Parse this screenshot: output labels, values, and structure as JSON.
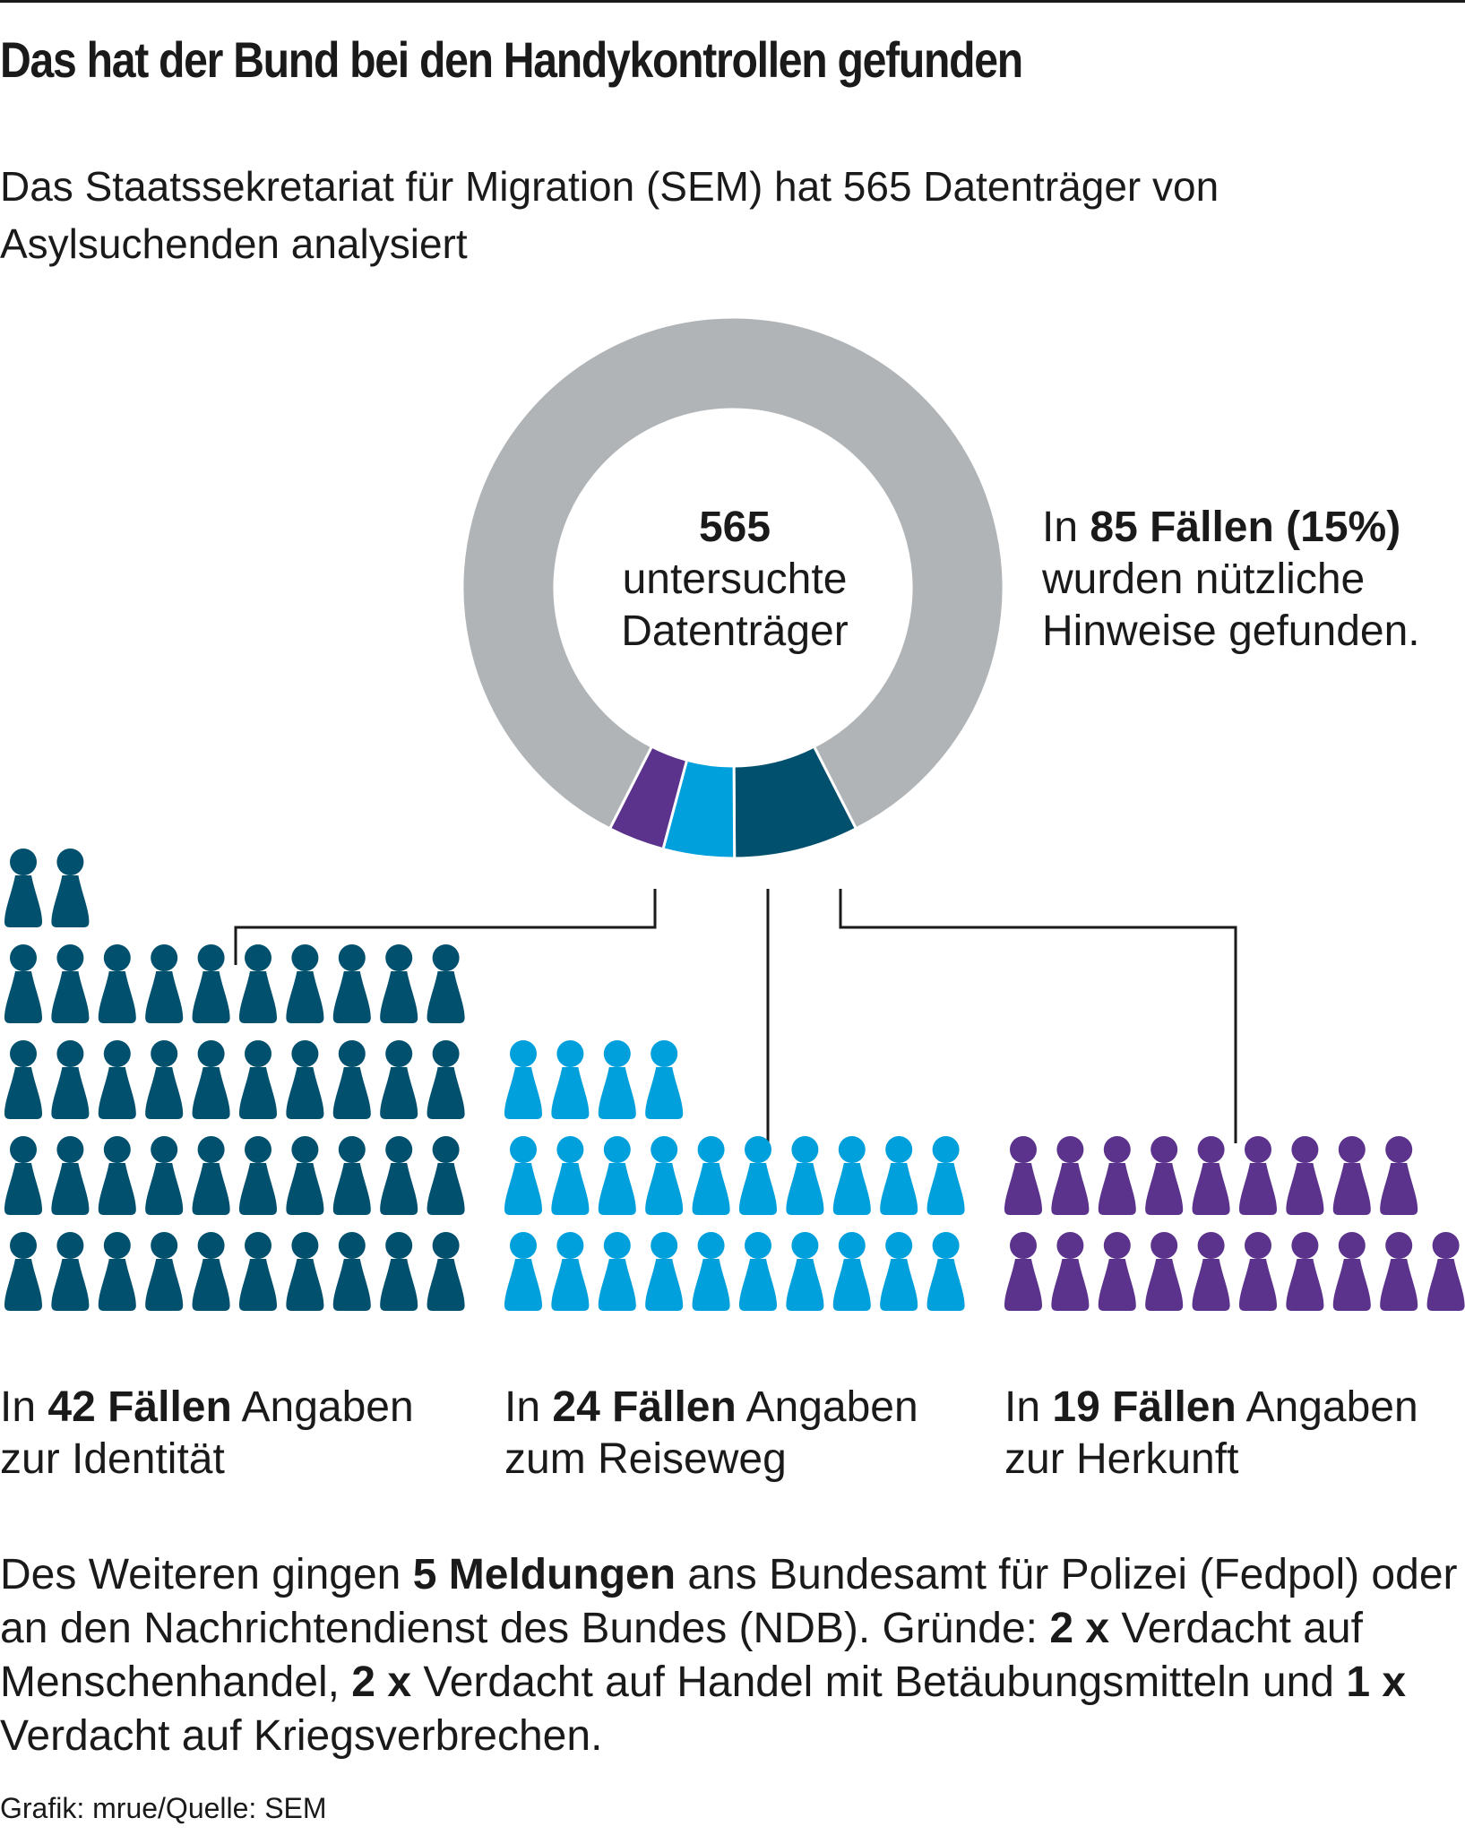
{
  "header": {
    "title": "Das hat der Bund bei den Handykontrollen gefunden",
    "subtitle": "Das Staatssekretariat für Migration (SEM) hat 565 Datenträger von Asylsuchenden analysiert"
  },
  "donut": {
    "center_number": "565",
    "center_label_1": "untersuchte",
    "center_label_2": "Datenträger"
  },
  "note": {
    "prefix": "In ",
    "bold": "85 Fällen (15%)",
    "rest_1": "wurden nützliche",
    "rest_2": "Hinweise gefunden."
  },
  "categories": [
    {
      "prefix": "In ",
      "bold": "42 Fällen",
      "rest_1": " Angaben",
      "rest_2": "zur Identität"
    },
    {
      "prefix": "In ",
      "bold": "24 Fällen",
      "rest_1": " Angaben",
      "rest_2": "zum Reiseweg"
    },
    {
      "prefix": "In ",
      "bold": "19 Fällen",
      "rest_1": " Angaben",
      "rest_2": "zur Herkunft"
    }
  ],
  "footer": {
    "p1": "Des Weiteren gingen ",
    "b1": "5 Meldungen",
    "p2": " ans Bundesamt für Polizei (Fedpol) oder an den Nachrichtendienst des Bundes (NDB). Gründe: ",
    "b2": "2 x",
    "p3": " Verdacht auf Menschenhandel, ",
    "b3": "2 x",
    "p4": " Verdacht auf Handel mit Betäubungsmitteln und ",
    "b4": "1 x",
    "p5": " Verdacht auf Kriegsverbrechen."
  },
  "credit": "Grafik: mrue/Quelle: SEM",
  "chart_data": {
    "type": "pie",
    "total": 565,
    "slices": [
      {
        "label": "zur Identität",
        "value": 42,
        "color": "#01506e"
      },
      {
        "label": "zum Reiseweg",
        "value": 24,
        "color": "#00a0dc"
      },
      {
        "label": "zur Herkunft",
        "value": 19,
        "color": "#5b338c"
      },
      {
        "label": "",
        "value": 480,
        "color": "#b1b4b7"
      }
    ]
  },
  "colors": {
    "identity": "#01506e",
    "route": "#00a0dc",
    "origin": "#5b338c",
    "rest": "#b1b4b7",
    "line": "#1a1a1a"
  }
}
